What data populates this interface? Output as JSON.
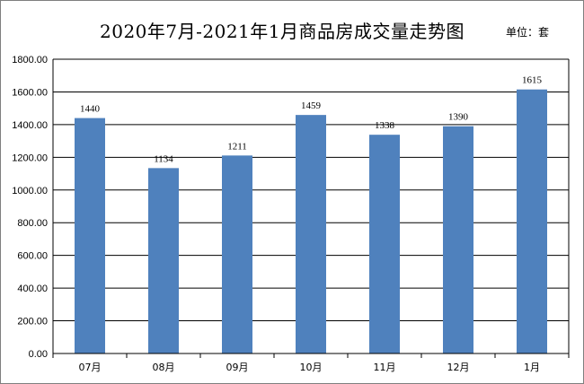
{
  "chart_data": {
    "type": "bar",
    "title": "2020年7月-2021年1月商品房成交量走势图",
    "unit_label": "单位：套",
    "categories": [
      "07月",
      "08月",
      "09月",
      "10月",
      "11月",
      "12月",
      "1月"
    ],
    "values": [
      1440,
      1134,
      1211,
      1459,
      1338,
      1390,
      1615
    ],
    "data_labels": [
      "1440",
      "1134",
      "1211",
      "1459",
      "1338",
      "1390",
      "1615"
    ],
    "y_ticks": [
      "0.00",
      "200.00",
      "400.00",
      "600.00",
      "800.00",
      "1000.00",
      "1200.00",
      "1400.00",
      "1600.00",
      "1800.00"
    ],
    "ylim": [
      0,
      1800
    ],
    "grid": true,
    "legend": "none",
    "bar_color": "#4f81bd",
    "xlabel": "",
    "ylabel": ""
  }
}
